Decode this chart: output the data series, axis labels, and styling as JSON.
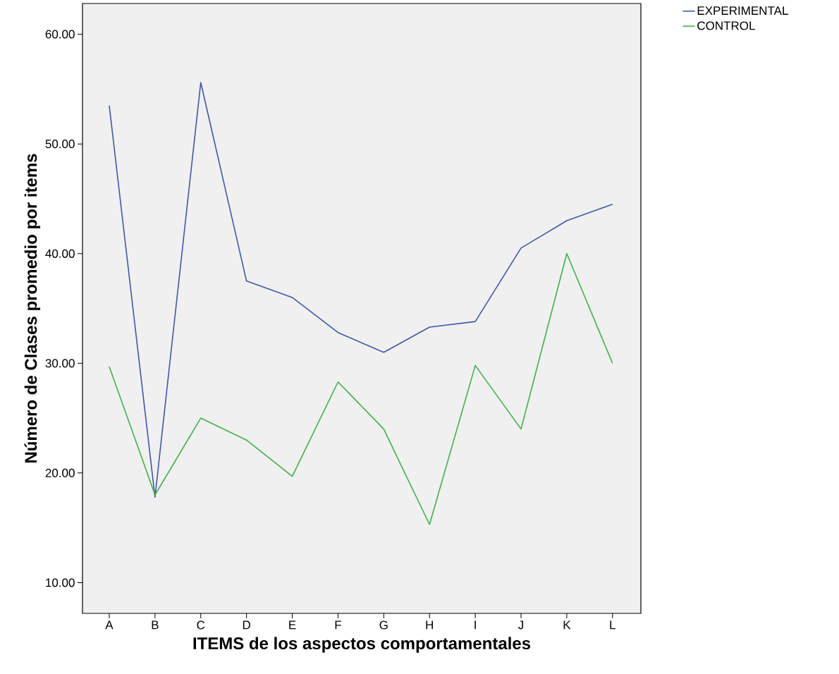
{
  "chart_data": {
    "type": "line",
    "xlabel": "ITEMS de los aspectos comportamentales",
    "ylabel": "Número de Clases promedio por items",
    "categories": [
      "A",
      "B",
      "C",
      "D",
      "E",
      "F",
      "G",
      "H",
      "I",
      "J",
      "K",
      "L"
    ],
    "series": [
      {
        "name": "EXPERIMENTAL",
        "color": "#3e58ac",
        "values": [
          53.5,
          17.8,
          55.6,
          37.5,
          36.0,
          32.8,
          31.0,
          33.3,
          33.8,
          40.5,
          43.0,
          44.5
        ]
      },
      {
        "name": "CONTROL",
        "color": "#3bb544",
        "values": [
          29.7,
          18.0,
          25.0,
          23.0,
          19.7,
          28.3,
          24.0,
          15.3,
          29.8,
          24.0,
          40.0,
          30.0
        ]
      }
    ],
    "ylim": [
      7.2,
      62.8
    ],
    "yticks": [
      {
        "value": 10,
        "label": "10.00"
      },
      {
        "value": 20,
        "label": "20.00"
      },
      {
        "value": 30,
        "label": "30.00"
      },
      {
        "value": 40,
        "label": "40.00"
      },
      {
        "value": 50,
        "label": "50.00"
      },
      {
        "value": 60,
        "label": "60.00"
      }
    ],
    "grid": false,
    "legend": "top right",
    "marker": "none",
    "line_style": "solid"
  }
}
